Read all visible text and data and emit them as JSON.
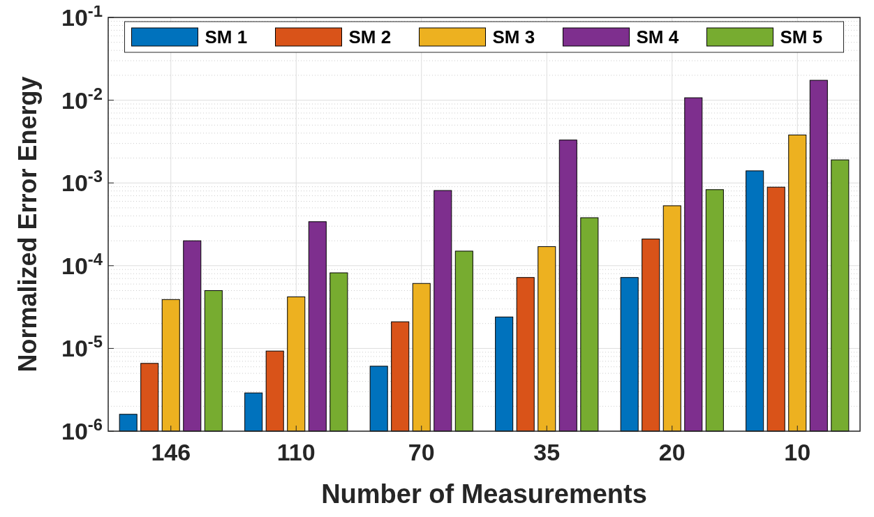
{
  "chart_data": {
    "type": "bar",
    "xlabel": "Number of Measurements",
    "ylabel": "Normalized Error Energy",
    "categories": [
      "146",
      "110",
      "70",
      "35",
      "20",
      "10"
    ],
    "series": [
      {
        "name": "SM 1",
        "color": "#0072bd",
        "values": [
          1.6e-06,
          2.9e-06,
          6.1e-06,
          2.4e-05,
          7.2e-05,
          0.0014
        ]
      },
      {
        "name": "SM 2",
        "color": "#d95319",
        "values": [
          6.6e-06,
          9.3e-06,
          2.1e-05,
          7.2e-05,
          0.00021,
          0.00089
        ]
      },
      {
        "name": "SM 3",
        "color": "#edb120",
        "values": [
          3.9e-05,
          4.2e-05,
          6.1e-05,
          0.00017,
          0.00053,
          0.0038
        ]
      },
      {
        "name": "SM 4",
        "color": "#7e2f8e",
        "values": [
          0.0002,
          0.00034,
          0.00081,
          0.0033,
          0.0107,
          0.0174
        ]
      },
      {
        "name": "SM 5",
        "color": "#77ac30",
        "values": [
          5e-05,
          8.2e-05,
          0.00015,
          0.00038,
          0.00083,
          0.0019
        ]
      }
    ],
    "log": true,
    "ylim": [
      1e-06,
      0.1
    ],
    "yticks": [
      {
        "value": 1e-06,
        "label": "10$^{-6}$"
      },
      {
        "value": 1e-05,
        "label": "10$^{-5}$"
      },
      {
        "value": 0.0001,
        "label": "10$^{-4}$"
      },
      {
        "value": 0.001,
        "label": "10$^{-3}$"
      },
      {
        "value": 0.01,
        "label": "10$^{-2}$"
      },
      {
        "value": 0.1,
        "label": "10$^{-1}$"
      }
    ],
    "grid": true,
    "legend": "top"
  }
}
